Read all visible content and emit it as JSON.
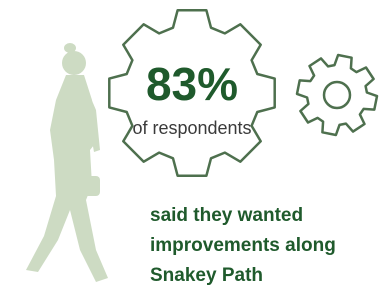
{
  "stat": {
    "value": "83%",
    "label": "of respondents"
  },
  "caption": [
    "said they wanted",
    "improvements along",
    "Snakey Path"
  ]
}
